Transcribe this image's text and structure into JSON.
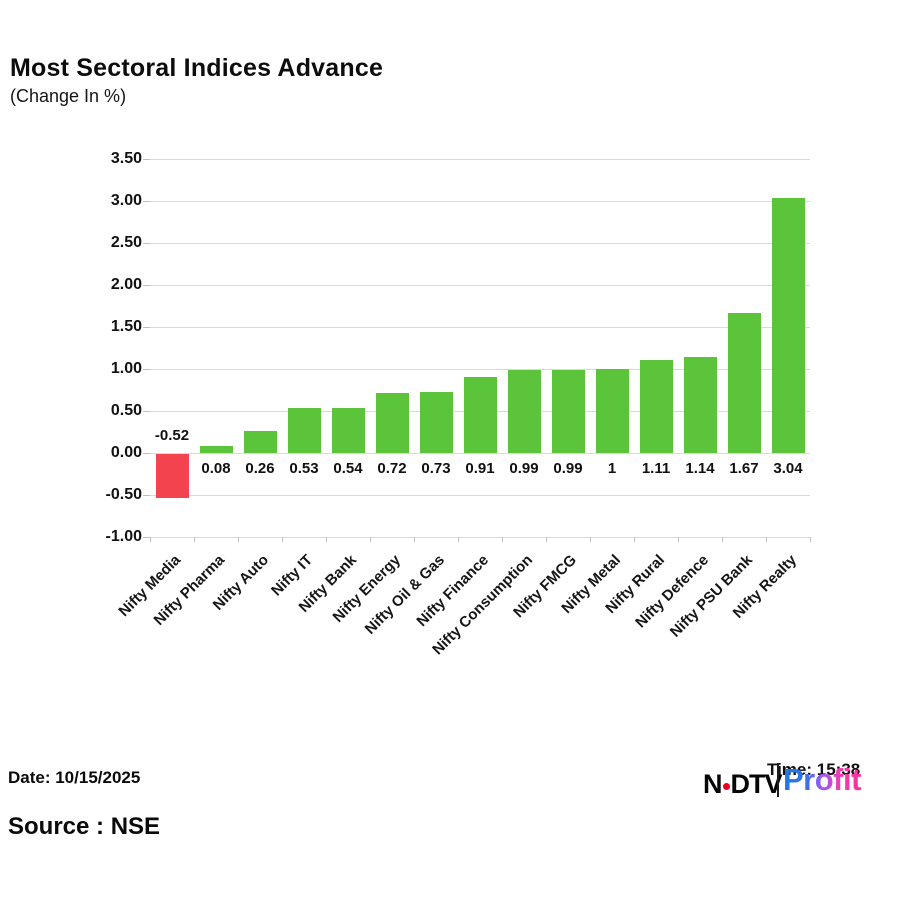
{
  "header": {
    "title": "Most Sectoral Indices Advance",
    "subtitle": "(Change In %)"
  },
  "chart_data": {
    "type": "bar",
    "title": "Most Sectoral Indices Advance",
    "subtitle": "(Change In %)",
    "xlabel": "",
    "ylabel": "Change In %",
    "categories": [
      "Nifty Media",
      "Nifty Pharma",
      "Nifty Auto",
      "Nifty IT",
      "Nifty Bank",
      "Nifty Energy",
      "Nifty Oil & Gas",
      "Nifty Finance",
      "Nifty Consumption",
      "Nifty FMCG",
      "Nifty Metal",
      "Nifty Rural",
      "Nifty Defence",
      "Nifty PSU Bank",
      "Nifty Realty"
    ],
    "values": [
      -0.52,
      0.08,
      0.26,
      0.53,
      0.54,
      0.72,
      0.73,
      0.91,
      0.99,
      0.99,
      1,
      1.11,
      1.14,
      1.67,
      3.04
    ],
    "value_labels": [
      "-0.52",
      "0.08",
      "0.26",
      "0.53",
      "0.54",
      "0.72",
      "0.73",
      "0.91",
      "0.99",
      "0.99",
      "1",
      "1.11",
      "1.14",
      "1.67",
      "3.04"
    ],
    "ylim": [
      -1.0,
      3.5
    ],
    "yticks": [
      {
        "value": 3.5,
        "label": "3.50"
      },
      {
        "value": 3.0,
        "label": "3.00"
      },
      {
        "value": 2.5,
        "label": "2.50"
      },
      {
        "value": 2.0,
        "label": "2.00"
      },
      {
        "value": 1.5,
        "label": "1.50"
      },
      {
        "value": 1.0,
        "label": "1.00"
      },
      {
        "value": 0.5,
        "label": "0.50"
      },
      {
        "value": 0.0,
        "label": "0.00"
      },
      {
        "value": -0.5,
        "label": "-0.50"
      },
      {
        "value": -1.0,
        "label": "-1.00"
      }
    ],
    "grid": "horizontal",
    "legend": "none",
    "colors": {
      "positive": "#5bc43b",
      "negative": "#f2434e",
      "gridline": "#d9d9d9",
      "axis": "#bfbfbf"
    }
  },
  "footer": {
    "date": "Date: 10/15/2025",
    "source": "Source : NSE",
    "logo": {
      "ndtv_n": "N",
      "ndtv_dtv": "DTV",
      "separator": "|",
      "brand": "Profit",
      "timestamp": "Time: 15:38"
    }
  }
}
